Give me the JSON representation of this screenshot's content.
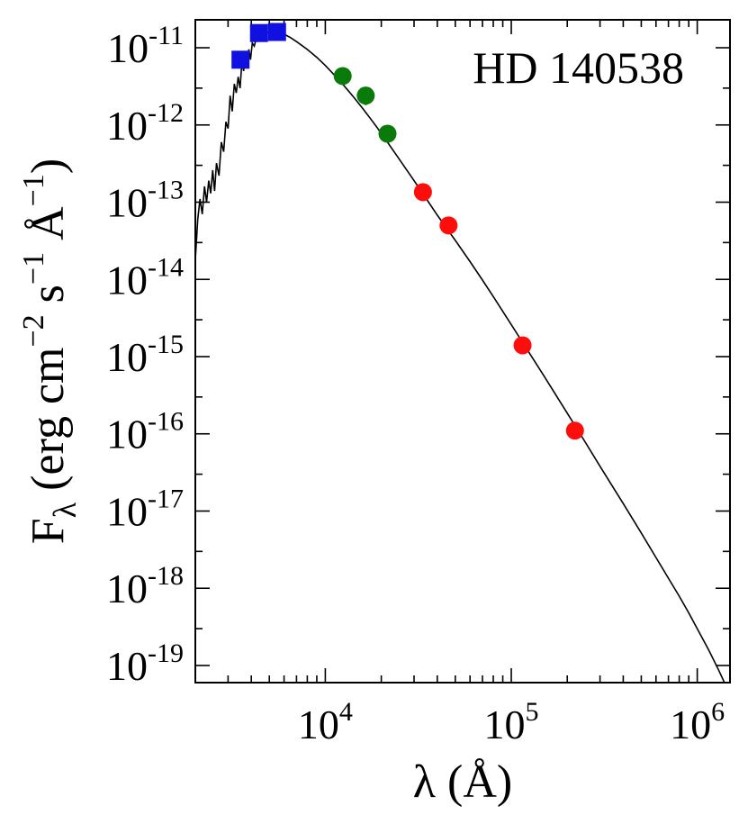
{
  "chart_data": {
    "type": "scatter",
    "annotation": "HD 140538",
    "xlabel": "λ (Å)",
    "ylabel": "Fλ (erg cm−2 s−1 Å−1)",
    "ylabel_parts": {
      "base": "F",
      "sub": "λ",
      "open": " (erg cm",
      "sup1": "−2",
      "mid1": " s",
      "sup2": "−1",
      "mid2": " Å",
      "sup3": "−1",
      "close": ")"
    },
    "xscale": "log",
    "yscale": "log",
    "xlim": [
      2000,
      1500000
    ],
    "ylim": [
      6e-20,
      2.3e-11
    ],
    "grid": false,
    "x_ticks": [
      {
        "value": 10000,
        "base": "10",
        "exp": "4"
      },
      {
        "value": 100000,
        "base": "10",
        "exp": "5"
      },
      {
        "value": 1000000,
        "base": "10",
        "exp": "6"
      }
    ],
    "y_ticks": [
      {
        "value": 1e-11,
        "base": "10",
        "exp": "-11"
      },
      {
        "value": 1e-12,
        "base": "10",
        "exp": "-12"
      },
      {
        "value": 1e-13,
        "base": "10",
        "exp": "-13"
      },
      {
        "value": 1e-14,
        "base": "10",
        "exp": "-14"
      },
      {
        "value": 1e-15,
        "base": "10",
        "exp": "-15"
      },
      {
        "value": 1e-16,
        "base": "10",
        "exp": "-16"
      },
      {
        "value": 1e-17,
        "base": "10",
        "exp": "-17"
      },
      {
        "value": 1e-18,
        "base": "10",
        "exp": "-18"
      },
      {
        "value": 1e-19,
        "base": "10",
        "exp": "-19"
      }
    ],
    "series": [
      {
        "marker": "square",
        "color": "#1010e0",
        "points": [
          {
            "x": 3500,
            "y": 7e-12,
            "yerr": 0
          },
          {
            "x": 4400,
            "y": 1.55e-11,
            "yerr": 0
          },
          {
            "x": 5500,
            "y": 1.6e-11,
            "yerr": 0
          }
        ]
      },
      {
        "marker": "circle",
        "color": "#0a7a0a",
        "points": [
          {
            "x": 12400,
            "y": 4.3e-12,
            "yerr": 1e-12
          },
          {
            "x": 16500,
            "y": 2.4e-12,
            "yerr": 6e-13
          },
          {
            "x": 21600,
            "y": 7.7e-13,
            "yerr": 0
          }
        ]
      },
      {
        "marker": "circle",
        "color": "#ff0c0c",
        "points": [
          {
            "x": 33500,
            "y": 1.35e-13,
            "yerr": 3e-14
          },
          {
            "x": 46000,
            "y": 5e-14,
            "yerr": 0
          },
          {
            "x": 115000,
            "y": 1.4e-15,
            "yerr": 0
          },
          {
            "x": 220000,
            "y": 1.1e-16,
            "yerr": 0
          }
        ]
      }
    ],
    "model_curve": {
      "color": "#000000",
      "points": [
        [
          2000,
          1.8e-14
        ],
        [
          2060,
          6e-14
        ],
        [
          2120,
          1.1e-13
        ],
        [
          2180,
          7e-14
        ],
        [
          2240,
          1.6e-13
        ],
        [
          2300,
          1e-13
        ],
        [
          2360,
          1.9e-13
        ],
        [
          2420,
          1.3e-13
        ],
        [
          2480,
          2.6e-13
        ],
        [
          2540,
          1.4e-13
        ],
        [
          2600,
          3.2e-13
        ],
        [
          2680,
          2.2e-13
        ],
        [
          2760,
          6e-13
        ],
        [
          2840,
          4.5e-13
        ],
        [
          2920,
          1.1e-12
        ],
        [
          3000,
          9e-13
        ],
        [
          3080,
          2.4e-12
        ],
        [
          3160,
          1.5e-12
        ],
        [
          3240,
          3.4e-12
        ],
        [
          3320,
          2.6e-12
        ],
        [
          3400,
          4.2e-12
        ],
        [
          3480,
          3e-12
        ],
        [
          3560,
          6.4e-12
        ],
        [
          3640,
          5e-12
        ],
        [
          3720,
          8.5e-12
        ],
        [
          3800,
          6.2e-12
        ],
        [
          3880,
          9.5e-12
        ],
        [
          3960,
          7e-12
        ],
        [
          4050,
          1.15e-11
        ],
        [
          4150,
          1.05e-11
        ],
        [
          4250,
          1.3e-11
        ],
        [
          4400,
          1.35e-11
        ],
        [
          4600,
          1.45e-11
        ],
        [
          4800,
          1.55e-11
        ],
        [
          5000,
          1.6e-11
        ],
        [
          5300,
          1.62e-11
        ],
        [
          5600,
          1.58e-11
        ],
        [
          6000,
          1.5e-11
        ],
        [
          6500,
          1.35e-11
        ],
        [
          7000,
          1.2e-11
        ],
        [
          8000,
          9.5e-12
        ],
        [
          9000,
          7.5e-12
        ],
        [
          10000,
          5.9e-12
        ],
        [
          12000,
          3.7e-12
        ],
        [
          14000,
          2.4e-12
        ],
        [
          16000,
          1.6e-12
        ],
        [
          18000,
          1.1e-12
        ],
        [
          20000,
          7.8e-13
        ],
        [
          25000,
          3.6e-13
        ],
        [
          30000,
          1.9e-13
        ],
        [
          35000,
          1.1e-13
        ],
        [
          40000,
          6.8e-14
        ],
        [
          50000,
          3.2e-14
        ],
        [
          60000,
          1.7e-14
        ],
        [
          70000,
          9.8e-15
        ],
        [
          80000,
          6e-15
        ],
        [
          100000,
          2.6e-15
        ],
        [
          120000,
          1.3e-15
        ],
        [
          150000,
          5.6e-16
        ],
        [
          200000,
          1.85e-16
        ],
        [
          250000,
          7.8e-17
        ],
        [
          300000,
          3.8e-17
        ],
        [
          400000,
          1.25e-17
        ],
        [
          500000,
          5.2e-18
        ],
        [
          600000,
          2.5e-18
        ],
        [
          700000,
          1.35e-18
        ],
        [
          800000,
          7.9e-19
        ],
        [
          900000,
          4.8e-19
        ],
        [
          1000000,
          3e-19
        ],
        [
          1150000,
          1.6e-19
        ],
        [
          1300000,
          8.8e-20
        ],
        [
          1450000,
          5e-20
        ]
      ]
    }
  }
}
